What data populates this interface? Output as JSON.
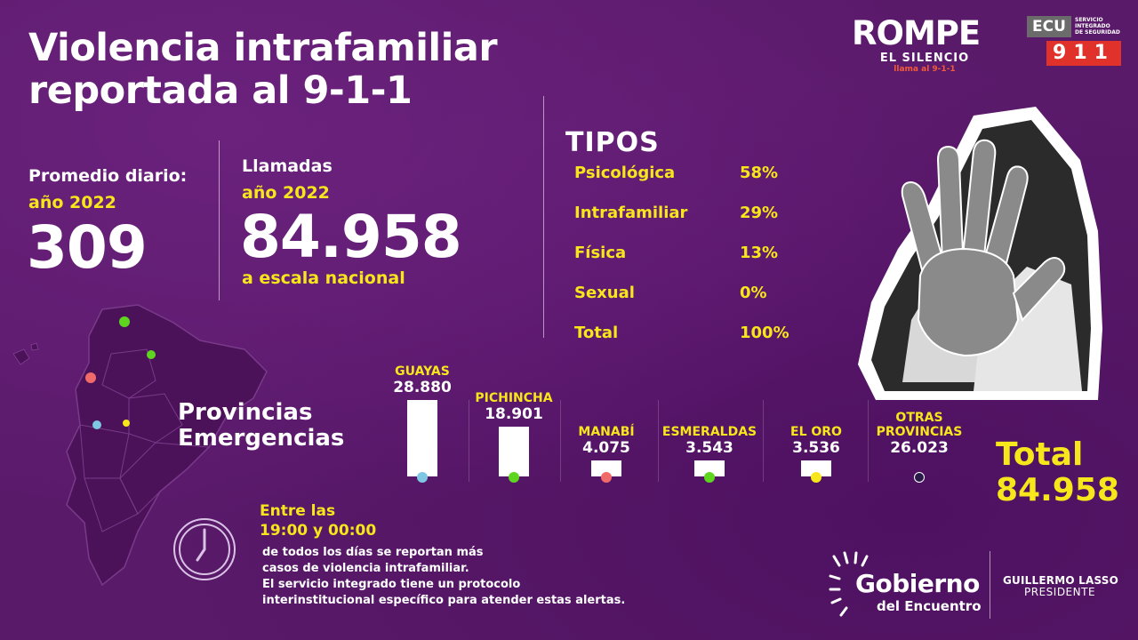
{
  "header": {
    "title_line1": "Violencia intrafamiliar",
    "title_line2": "reportada al 9-1-1"
  },
  "promedio": {
    "label": "Promedio diario:",
    "year": "año 2022",
    "value": "309"
  },
  "llamadas": {
    "label": "Llamadas",
    "year": "año 2022",
    "value": "84.958",
    "scope": "a escala nacional"
  },
  "tipos": {
    "title": "TIPOS",
    "rows": [
      {
        "name": "Psicológica",
        "pct": "58%"
      },
      {
        "name": "Intrafamiliar",
        "pct": "29%"
      },
      {
        "name": "Física",
        "pct": "13%"
      },
      {
        "name": "Sexual",
        "pct": "0%"
      },
      {
        "name": "Total",
        "pct": "100%"
      }
    ]
  },
  "logos": {
    "rompe": "ROMPE",
    "rompe_sub": "EL SILENCIO",
    "rompe_call": "llama al 9-1-1",
    "ecu": "ECU",
    "ecu_number": "911",
    "ecu_service": [
      "SERVICIO",
      "INTEGRADO",
      "DE SEGURIDAD"
    ],
    "gobierno": "Gobierno",
    "gobierno_sub": "del Encuentro",
    "president_name": "GUILLERMO LASSO",
    "president_title": "PRESIDENTE"
  },
  "provincias": {
    "label_line1": "Provincias",
    "label_line2": "Emergencias"
  },
  "chart_data": {
    "type": "bar",
    "title": "",
    "categories": [
      "GUAYAS",
      "PICHINCHA",
      "MANABÍ",
      "ESMERALDAS",
      "EL ORO",
      "OTRAS PROVINCIAS"
    ],
    "category_label_lines": [
      [
        "GUAYAS"
      ],
      [
        "PICHINCHA"
      ],
      [
        "MANABÍ"
      ],
      [
        "ESMERALDAS"
      ],
      [
        "EL ORO"
      ],
      [
        "OTRAS",
        "PROVINCIAS"
      ]
    ],
    "values": [
      28880,
      18901,
      4075,
      3543,
      3536,
      26023
    ],
    "value_labels": [
      "28.880",
      "18.901",
      "4.075",
      "3.543",
      "3.536",
      "26.023"
    ],
    "dot_colors": [
      "#7ec8e3",
      "#5ed61f",
      "#f06a6a",
      "#5ed61f",
      "#f7e61b",
      "#2a1a4a"
    ],
    "show_bar": [
      true,
      true,
      true,
      true,
      true,
      false
    ],
    "bar_color": "#ffffff",
    "label_color": "#f7e61b",
    "xlabel": "",
    "ylabel": "",
    "grid": false
  },
  "total": {
    "label": "Total",
    "value": "84.958"
  },
  "horario": {
    "intro": "Entre las",
    "range": "19:00 y 00:00",
    "lines": [
      "de todos los días se reportan más",
      "casos de violencia intrafamiliar.",
      "El servicio integrado tiene un protocolo",
      "interinstitucional específico para atender estas alertas."
    ]
  },
  "map": {
    "dot_colors": [
      "#5ed61f",
      "#5ed61f",
      "#f06a6a",
      "#7ec8e3",
      "#f7e61b"
    ]
  },
  "colors": {
    "background": "#5a1a6a",
    "accent": "#f7e61b",
    "text": "#ffffff"
  }
}
